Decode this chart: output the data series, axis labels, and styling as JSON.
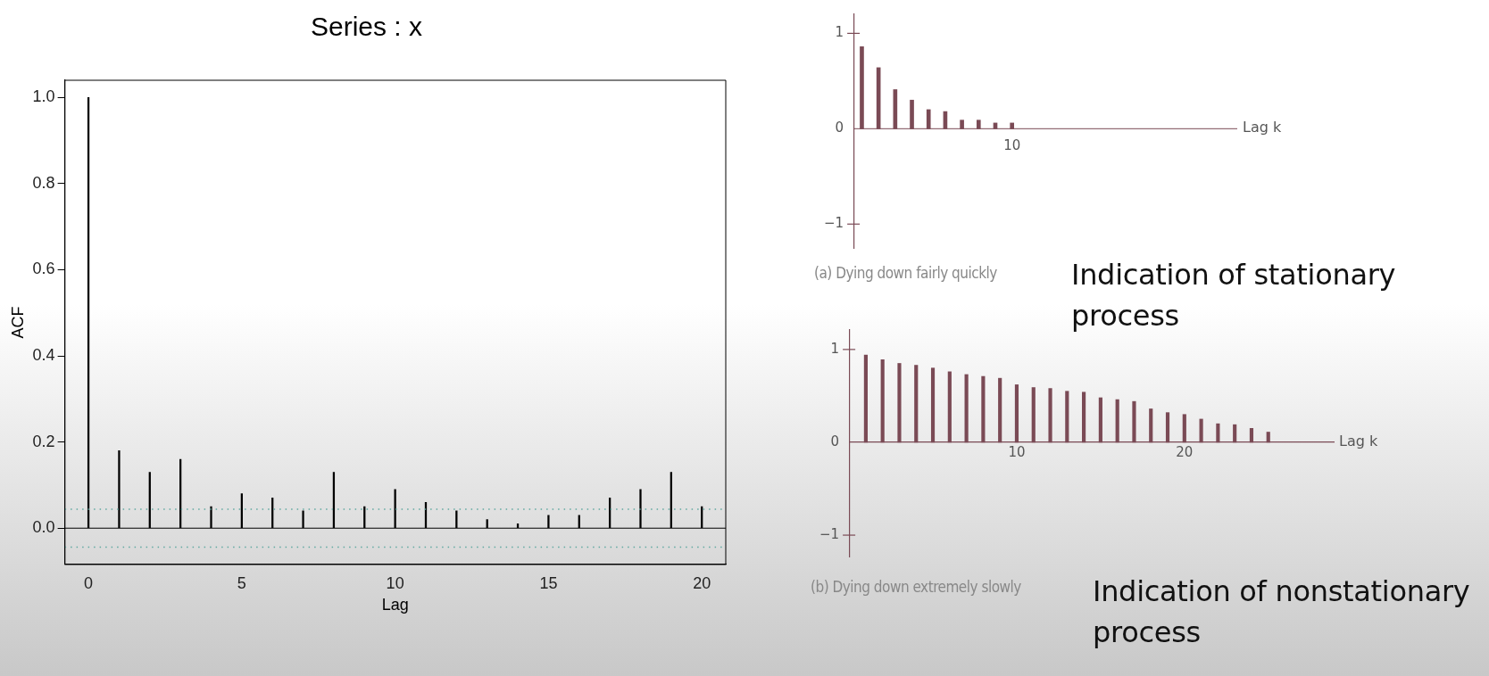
{
  "chart_data": [
    {
      "type": "bar",
      "title": "Series : x",
      "xlabel": "Lag",
      "ylabel": "ACF",
      "color": "#000000",
      "x": [
        0,
        1,
        2,
        3,
        4,
        5,
        6,
        7,
        8,
        9,
        10,
        11,
        12,
        13,
        14,
        15,
        16,
        17,
        18,
        19,
        20
      ],
      "values": [
        1.0,
        0.18,
        0.13,
        0.16,
        0.05,
        0.08,
        0.07,
        0.04,
        0.13,
        0.05,
        0.09,
        0.06,
        0.04,
        0.02,
        0.01,
        0.03,
        0.03,
        0.07,
        0.09,
        0.13,
        0.05
      ],
      "xlim": [
        -0.77,
        20.78
      ],
      "xticks": [
        0,
        5,
        10,
        15,
        20
      ],
      "ylim": [
        -0.084,
        1.04
      ],
      "yticks": [
        {
          "value": 0,
          "label": "0.0"
        },
        0.2,
        0.4,
        0.6,
        0.8,
        {
          "value": 1,
          "label": "1.0"
        }
      ],
      "ref_lines": [
        {
          "axis": "y",
          "value": 0,
          "color": "#000000",
          "line_style": "solid"
        },
        {
          "axis": "y",
          "value": 0.044,
          "color": "#5fa8a0",
          "line_style": "dotted"
        },
        {
          "axis": "y",
          "value": -0.044,
          "color": "#5fa8a0",
          "line_style": "dotted"
        }
      ]
    },
    {
      "type": "bar",
      "xlabel": "Lag k",
      "color": "#7a4a55",
      "categories": [
        null,
        null,
        null,
        null,
        null,
        null,
        null,
        null,
        null,
        "10",
        null,
        null,
        null,
        null,
        null,
        null,
        null,
        null,
        null,
        null,
        null,
        null,
        null
      ],
      "values": [
        0.86,
        0.64,
        0.41,
        0.3,
        0.2,
        0.18,
        0.09,
        0.09,
        0.06,
        0.06,
        null,
        null,
        null,
        null,
        null,
        null,
        null,
        null,
        null,
        null,
        null,
        null,
        null
      ],
      "ref_lines": [
        {
          "axis": "y",
          "value": 0,
          "color": "#7a4a55",
          "line_style": "solid"
        }
      ],
      "ylim": [
        -1.25,
        1.2
      ],
      "yticks": [
        {
          "value": -1,
          "label": "−1"
        },
        0,
        1
      ],
      "annotations": [
        "(a) Dying down fairly quickly",
        "Indication of stationary process"
      ]
    },
    {
      "type": "bar",
      "xlabel": "Lag k",
      "color": "#7a4a55",
      "x": [
        1,
        2,
        3,
        4,
        5,
        6,
        7,
        8,
        9,
        10,
        11,
        12,
        13,
        14,
        15,
        16,
        17,
        18,
        19,
        20,
        21,
        22,
        23,
        24,
        25
      ],
      "values": [
        0.94,
        0.89,
        0.85,
        0.83,
        0.8,
        0.76,
        0.73,
        0.71,
        0.69,
        0.62,
        0.59,
        0.58,
        0.55,
        0.54,
        0.48,
        0.46,
        0.44,
        0.36,
        0.32,
        0.3,
        0.25,
        0.2,
        0.19,
        0.15,
        0.11
      ],
      "xlim": [
        0,
        28.9
      ],
      "xticks": [
        10,
        20
      ],
      "ylim": [
        -1.23,
        1.21
      ],
      "yticks": [
        {
          "value": -1,
          "label": "−1"
        },
        0,
        1
      ],
      "annotations": [
        "(b) Dying down extremely slowly",
        "Indication of nonstationary process"
      ]
    }
  ]
}
